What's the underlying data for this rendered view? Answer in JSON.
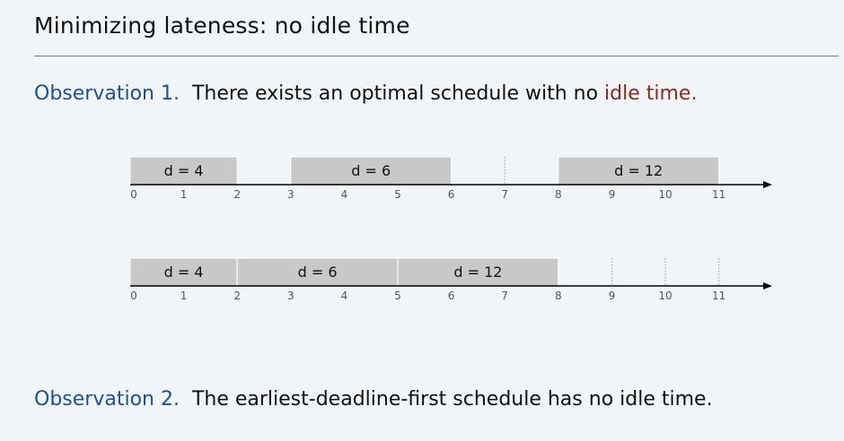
{
  "title": "Minimizing lateness:  no idle time",
  "observation1": {
    "label": "Observation 1.",
    "text_before": "There exists an optimal schedule with no ",
    "highlight": "idle time."
  },
  "observation2": {
    "label": "Observation 2.",
    "text": "The earliest-deadline-first schedule has no idle time."
  },
  "colors": {
    "label_blue": "#1b4f9c",
    "highlight_red": "#8b2a1a",
    "job_fill": "#c8c8c8",
    "axis": "#000000",
    "tick_text": "#555555"
  },
  "timelines": [
    {
      "ticks": [
        "0",
        "1",
        "2",
        "3",
        "4",
        "5",
        "6",
        "7",
        "8",
        "9",
        "10",
        "11"
      ],
      "jobs": [
        {
          "start": 0,
          "end": 2,
          "label": "d = 4"
        },
        {
          "start": 3,
          "end": 6,
          "label": "d = 6"
        },
        {
          "start": 8,
          "end": 11,
          "label": "d = 12"
        }
      ],
      "dotted_marks": [
        7
      ]
    },
    {
      "ticks": [
        "0",
        "1",
        "2",
        "3",
        "4",
        "5",
        "6",
        "7",
        "8",
        "9",
        "10",
        "11"
      ],
      "jobs": [
        {
          "start": 0,
          "end": 2,
          "label": "d = 4"
        },
        {
          "start": 2,
          "end": 5,
          "label": "d = 6"
        },
        {
          "start": 5,
          "end": 8,
          "label": "d = 12"
        }
      ],
      "dotted_marks": [
        9,
        10,
        11
      ]
    }
  ]
}
